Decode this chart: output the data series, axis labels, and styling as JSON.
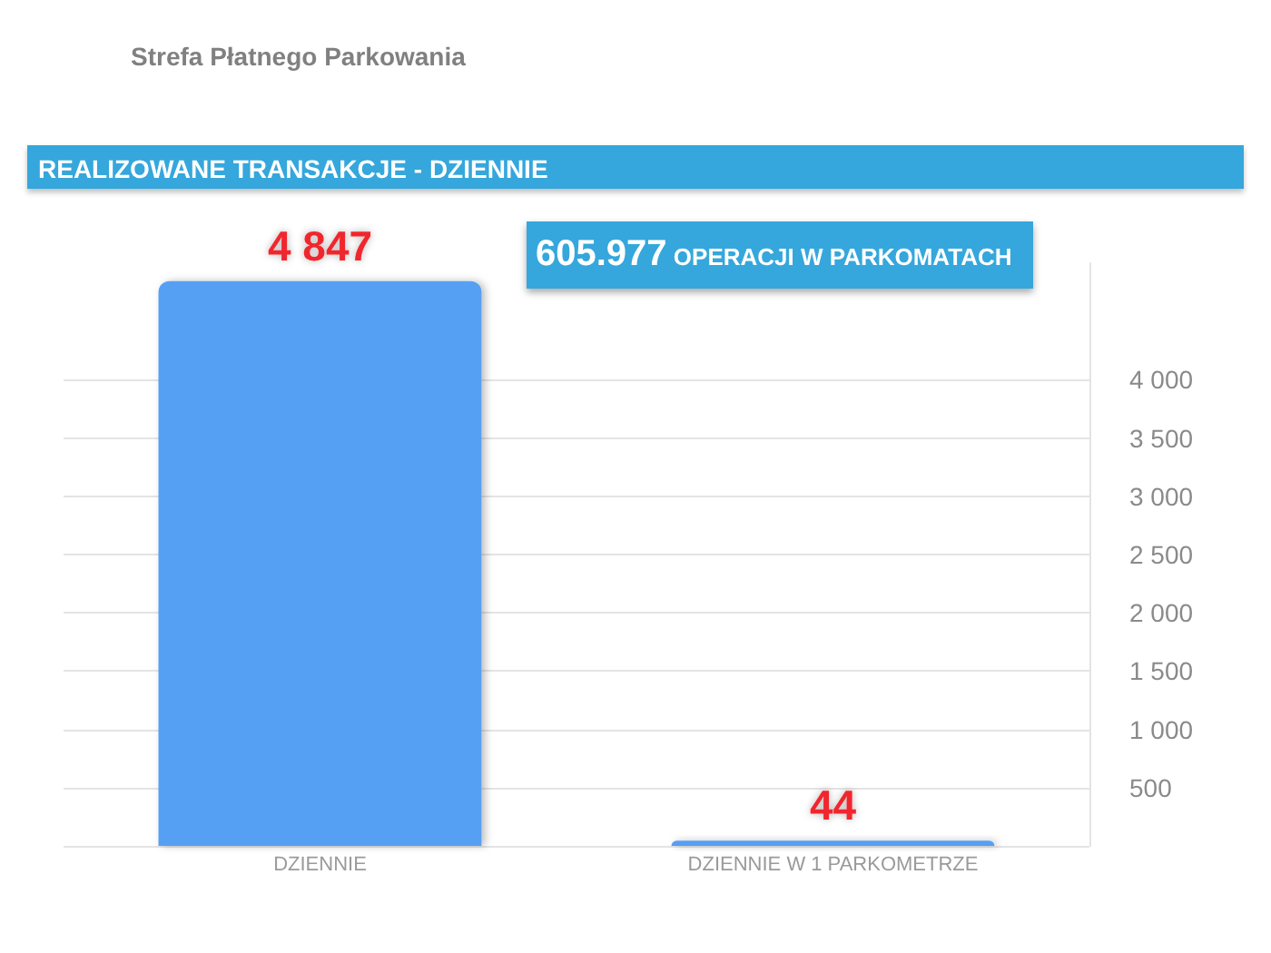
{
  "chart_data": {
    "type": "bar",
    "title": "REALIZOWANE TRANSAKCJE - DZIENNIE",
    "subtitle": "Strefa Płatnego Parkowania",
    "annotations": [
      "605.977 OPERACJI W PARKOMATACH"
    ],
    "categories": [
      "DZIENNIE",
      "DZIENNIE W 1 PARKOMETRZE"
    ],
    "values": [
      4847,
      44
    ],
    "value_labels": [
      "4 847",
      "44"
    ],
    "color": "#56a0f4",
    "ylim": [
      0,
      5000
    ],
    "yticks": [
      {
        "value": 0,
        "label": null
      },
      500,
      {
        "value": 1000,
        "label": "1 000"
      },
      {
        "value": 1500,
        "label": "1 500"
      },
      {
        "value": 2000,
        "label": "2 000"
      },
      {
        "value": 2500,
        "label": "2 500"
      },
      {
        "value": 3000,
        "label": "3 000"
      },
      {
        "value": 3500,
        "label": "3 500"
      },
      {
        "value": 4000,
        "label": "4 000"
      }
    ],
    "grid": "y"
  }
}
